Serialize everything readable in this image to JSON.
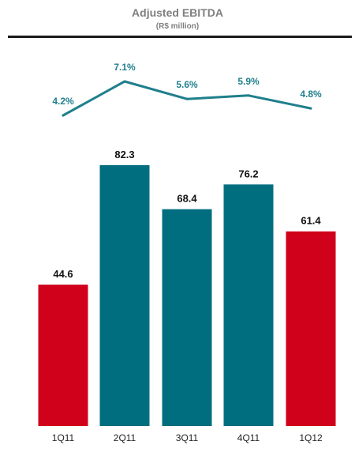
{
  "chart_data": {
    "type": "bar",
    "title": "Adjusted EBITDA",
    "subtitle": "(R$ million)",
    "categories": [
      "1Q11",
      "2Q11",
      "3Q11",
      "4Q11",
      "1Q12"
    ],
    "values": [
      44.6,
      82.3,
      68.4,
      76.2,
      61.4
    ],
    "value_labels": [
      "44.6",
      "82.3",
      "68.4",
      "76.2",
      "61.4"
    ],
    "bar_colors": [
      "#d0021b",
      "#006e7f",
      "#006e7f",
      "#006e7f",
      "#d0021b"
    ],
    "margin_series": {
      "values": [
        4.2,
        7.1,
        5.6,
        5.9,
        4.8
      ],
      "labels": [
        "4.2%",
        "7.1%",
        "5.6%",
        "5.9%",
        "4.8%"
      ],
      "color": "#1f7f8c"
    },
    "xlabel": "",
    "ylabel": "",
    "grid": false,
    "legend": "none"
  }
}
